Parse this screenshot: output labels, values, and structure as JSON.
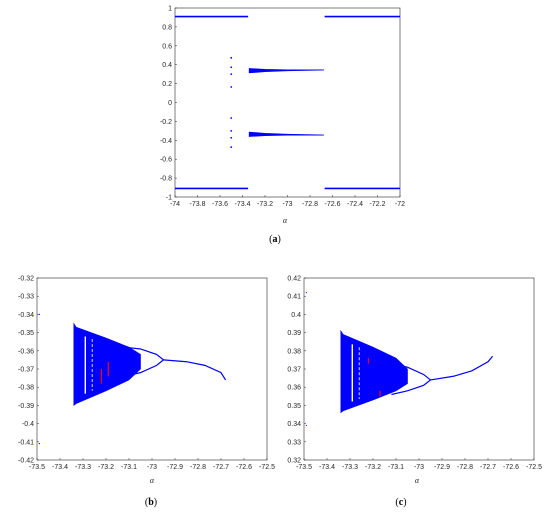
{
  "colors": {
    "series": "#0000ff",
    "highlight": "#ff0000",
    "axis": "#262626"
  },
  "chart_data": [
    {
      "id": "a",
      "type": "scatter",
      "caption": "a",
      "title": "",
      "xlabel": "α",
      "ylabel": "",
      "xlim": [
        -74,
        -72
      ],
      "ylim": [
        -1.1,
        1.1
      ],
      "xticks": [
        "-74",
        "-73.8",
        "-73.6",
        "-73.4",
        "-73.2",
        "-73",
        "-72.8",
        "-72.6",
        "-72.4",
        "-72.2",
        "-72"
      ],
      "yticks": [
        "1",
        "0.8",
        "0.6",
        "0.4",
        "0.2",
        "0",
        "-0.2",
        "-0.4",
        "-0.6",
        "-0.8",
        "-1"
      ],
      "series": [
        {
          "type": "line",
          "x": [
            -74,
            -73.35
          ],
          "y": [
            1,
            1
          ]
        },
        {
          "type": "line",
          "x": [
            -72.67,
            -72
          ],
          "y": [
            1,
            1
          ]
        },
        {
          "type": "line",
          "x": [
            -74,
            -73.35
          ],
          "y": [
            -1,
            -1
          ]
        },
        {
          "type": "line",
          "x": [
            -72.67,
            -72
          ],
          "y": [
            -1,
            -1
          ]
        },
        {
          "type": "band",
          "x": [
            -73.34,
            -73.2,
            -73.0,
            -72.68
          ],
          "upper": [
            0.395,
            0.385,
            0.38,
            0.38
          ],
          "lower": [
            0.345,
            0.36,
            0.37,
            0.378
          ]
        },
        {
          "type": "band",
          "x": [
            -73.34,
            -73.2,
            -73.0,
            -72.68
          ],
          "upper": [
            -0.345,
            -0.36,
            -0.37,
            -0.378
          ],
          "lower": [
            -0.395,
            -0.385,
            -0.38,
            -0.38
          ]
        },
        {
          "type": "points",
          "x": [
            -73.5,
            -73.5,
            -73.5,
            -73.5,
            -73.5,
            -73.5,
            -73.5,
            -73.5,
            -73.5
          ],
          "y": [
            0.52,
            0.41,
            0.33,
            0.18,
            -0.18,
            -0.33,
            -0.41,
            -0.52,
            0.0
          ]
        }
      ]
    },
    {
      "id": "b",
      "type": "scatter",
      "caption": "b",
      "title": "",
      "xlabel": "α",
      "ylabel": "",
      "xlim": [
        -73.5,
        -72.5
      ],
      "ylim": [
        -0.42,
        -0.32
      ],
      "xticks": [
        "-73.5",
        "-73.4",
        "-73.3",
        "-73.2",
        "-73.1",
        "-73",
        "-72.9",
        "-72.8",
        "-72.7",
        "-72.6",
        "-72.5"
      ],
      "yticks": [
        "-0.32",
        "-0.33",
        "-0.34",
        "-0.35",
        "-0.36",
        "-0.37",
        "-0.38",
        "-0.39",
        "-0.4",
        "-0.41",
        "-0.42"
      ],
      "chaos": {
        "x": [
          -73.34,
          -73.33,
          -73.2,
          -73.1,
          -73.05
        ],
        "upper": [
          -0.345,
          -0.347,
          -0.353,
          -0.358,
          -0.362
        ],
        "lower": [
          -0.39,
          -0.389,
          -0.382,
          -0.376,
          -0.37
        ]
      },
      "branches": [
        {
          "x": [
            -73.12,
            -73.05,
            -72.98,
            -72.95
          ],
          "y": [
            -0.358,
            -0.359,
            -0.362,
            -0.365
          ]
        },
        {
          "x": [
            -73.12,
            -73.05,
            -72.98,
            -72.95
          ],
          "y": [
            -0.374,
            -0.372,
            -0.368,
            -0.365
          ]
        },
        {
          "x": [
            -72.95,
            -72.85,
            -72.77,
            -72.7,
            -72.68
          ],
          "y": [
            -0.365,
            -0.366,
            -0.368,
            -0.372,
            -0.376
          ]
        }
      ],
      "windows_x": [
        -73.29,
        -73.26
      ],
      "highlights": [
        {
          "x": -73.19,
          "y": [
            -0.366,
            -0.374
          ]
        },
        {
          "x": -73.22,
          "y": [
            -0.37,
            -0.378
          ]
        }
      ],
      "outliers": [
        {
          "x": -73.49,
          "y": -0.34
        },
        {
          "x": -73.49,
          "y": -0.411
        }
      ]
    },
    {
      "id": "c",
      "type": "scatter",
      "caption": "c",
      "title": "",
      "xlabel": "α",
      "ylabel": "",
      "xlim": [
        -73.5,
        -72.5
      ],
      "ylim": [
        0.32,
        0.42
      ],
      "xticks": [
        "-73.5",
        "-73.4",
        "-73.3",
        "-73.2",
        "-73.1",
        "-73",
        "-72.9",
        "-72.8",
        "-72.7",
        "-72.6",
        "-72.5"
      ],
      "yticks": [
        "0.42",
        "0.41",
        "0.4",
        "0.39",
        "0.38",
        "0.37",
        "0.36",
        "0.35",
        "0.34",
        "0.33",
        "0.32"
      ],
      "chaos": {
        "x": [
          -73.34,
          -73.33,
          -73.2,
          -73.1,
          -73.05
        ],
        "upper": [
          0.391,
          0.389,
          0.382,
          0.376,
          0.37
        ],
        "lower": [
          0.346,
          0.347,
          0.353,
          0.358,
          0.362
        ]
      },
      "branches": [
        {
          "x": [
            -73.12,
            -73.05,
            -72.98,
            -72.95
          ],
          "y": [
            0.373,
            0.371,
            0.367,
            0.364
          ]
        },
        {
          "x": [
            -73.12,
            -73.05,
            -72.98,
            -72.95
          ],
          "y": [
            0.356,
            0.358,
            0.361,
            0.364
          ]
        },
        {
          "x": [
            -72.95,
            -72.85,
            -72.77,
            -72.7,
            -72.68
          ],
          "y": [
            0.364,
            0.366,
            0.369,
            0.374,
            0.377
          ]
        }
      ],
      "windows_x": [
        -73.29,
        -73.26
      ],
      "highlights": [
        {
          "x": -73.22,
          "y": [
            0.373,
            0.376
          ]
        },
        {
          "x": -73.17,
          "y": [
            0.355,
            0.358
          ]
        }
      ],
      "outliers": [
        {
          "x": -73.49,
          "y": 0.412
        },
        {
          "x": -73.49,
          "y": 0.339
        }
      ]
    }
  ]
}
